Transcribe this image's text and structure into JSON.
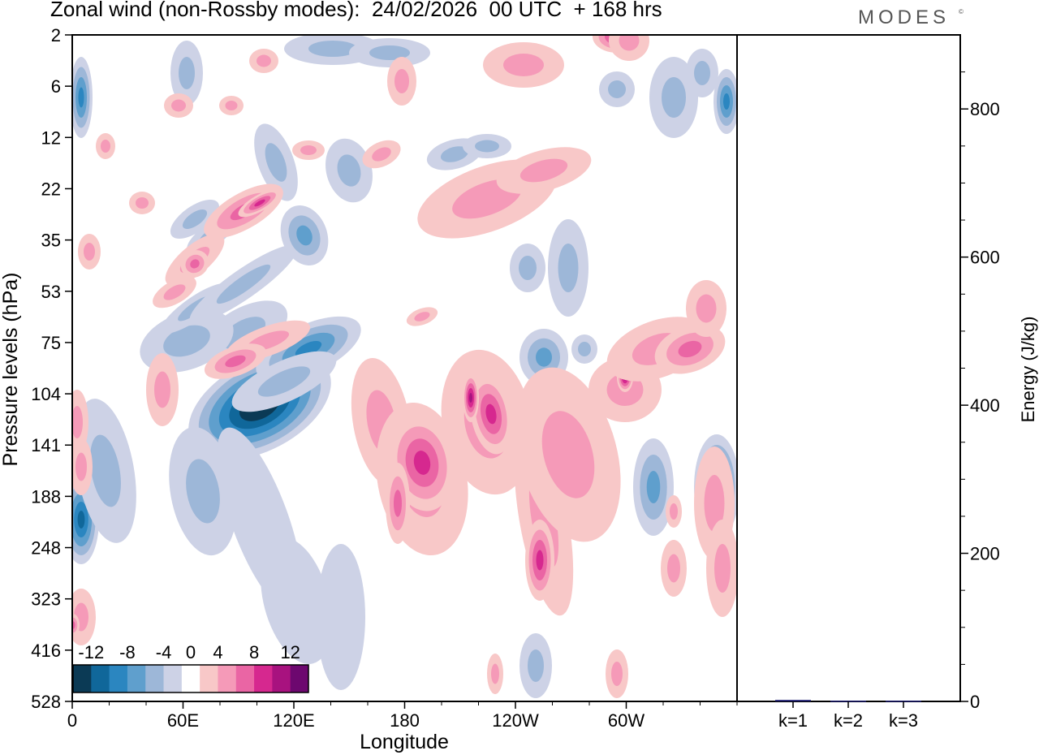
{
  "header": {
    "title": "Zonal wind (non-Rossby modes):  24/02/2026  00 UTC  + 168 hrs",
    "logo": "MODES",
    "logo_mark": "©"
  },
  "chart_data": [
    {
      "type": "heatmap",
      "title": "Zonal wind (non-Rossby modes):  24/02/2026  00 UTC  + 168 hrs",
      "xlabel": "Longitude",
      "ylabel": "Pressure levels (hPa)",
      "x_ticks": [
        "0",
        "60E",
        "120E",
        "180",
        "120W",
        "60W"
      ],
      "y_ticks": [
        "2",
        "6",
        "12",
        "22",
        "35",
        "53",
        "75",
        "104",
        "141",
        "188",
        "248",
        "323",
        "416",
        "528"
      ],
      "colorbar": {
        "labels": [
          "-12",
          "-8",
          "-4",
          "0",
          "4",
          "8",
          "12"
        ],
        "levels": [
          -14,
          -12,
          -10,
          -8,
          -6,
          -4,
          -2,
          2,
          4,
          6,
          8,
          10,
          12,
          14
        ],
        "colors": [
          "#0b3a55",
          "#10679a",
          "#2b86c0",
          "#5f9fcd",
          "#9db7d8",
          "#cdd2e6",
          "#ffffff",
          "#f8c8c8",
          "#f59ab8",
          "#ea65a4",
          "#d6288f",
          "#a8127f",
          "#6d086f"
        ]
      },
      "features": [
        {
          "sign": "negative",
          "peak": -14,
          "lon": 100,
          "level_hPa": 120,
          "label": "strong easterly core"
        },
        {
          "sign": "positive",
          "peak": 10,
          "lon": 183,
          "level_hPa": 170,
          "label": "westerly band"
        },
        {
          "sign": "positive",
          "peak": 10,
          "lon": 207,
          "level_hPa": 130,
          "label": "westerly band"
        },
        {
          "sign": "positive",
          "peak": 10,
          "lon": 225,
          "level_hPa": 260,
          "label": "westerly band"
        },
        {
          "sign": "negative",
          "peak": -8,
          "lon": 3,
          "level_hPa": 230,
          "label": "easterly patch"
        },
        {
          "sign": "negative",
          "peak": -8,
          "lon": 348,
          "level_hPa": 190,
          "label": "easterly patch"
        }
      ]
    },
    {
      "type": "bar",
      "categories": [
        "k=1",
        "k=2",
        "k=3"
      ],
      "values": [
        2,
        1,
        1
      ],
      "ylabel": "Energy (J/kg)",
      "ylim": [
        0,
        900
      ],
      "y_ticks": [
        "0",
        "200",
        "400",
        "600",
        "800"
      ]
    }
  ]
}
